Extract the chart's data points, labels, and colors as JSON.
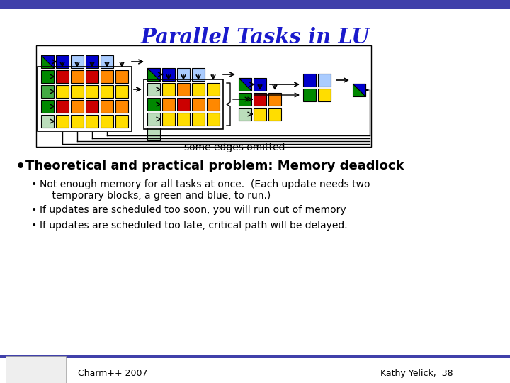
{
  "title": "Parallel Tasks in LU",
  "title_color": "#1a1acc",
  "bg_color": "#ffffff",
  "header_bar_color": "#4040aa",
  "footer_bar_color": "#4040aa",
  "bullet_main": "Theoretical and practical problem: Memory deadlock",
  "bullet1a": "Not enough memory for all tasks at once.  (Each update needs two",
  "bullet1b": "    temporary blocks, a green and blue, to run.)",
  "bullet2": "If updates are scheduled too soon, you will run out of memory",
  "bullet3": "If updates are scheduled too late, critical path will be delayed.",
  "footer_left": "Charm++ 2007",
  "footer_right": "Kathy Yelick,  38",
  "some_edges_omitted": "some edges omitted",
  "colors": {
    "dark_blue": "#0000cc",
    "med_blue": "#3366cc",
    "light_blue": "#7799ee",
    "sky_blue": "#aaccff",
    "dark_green": "#008800",
    "med_green": "#44aa44",
    "light_green": "#99cc99",
    "pale_green": "#bbddbb",
    "red": "#cc0000",
    "orange": "#ff8800",
    "yellow": "#ffdd00",
    "dark_yellow": "#ddbb00"
  }
}
